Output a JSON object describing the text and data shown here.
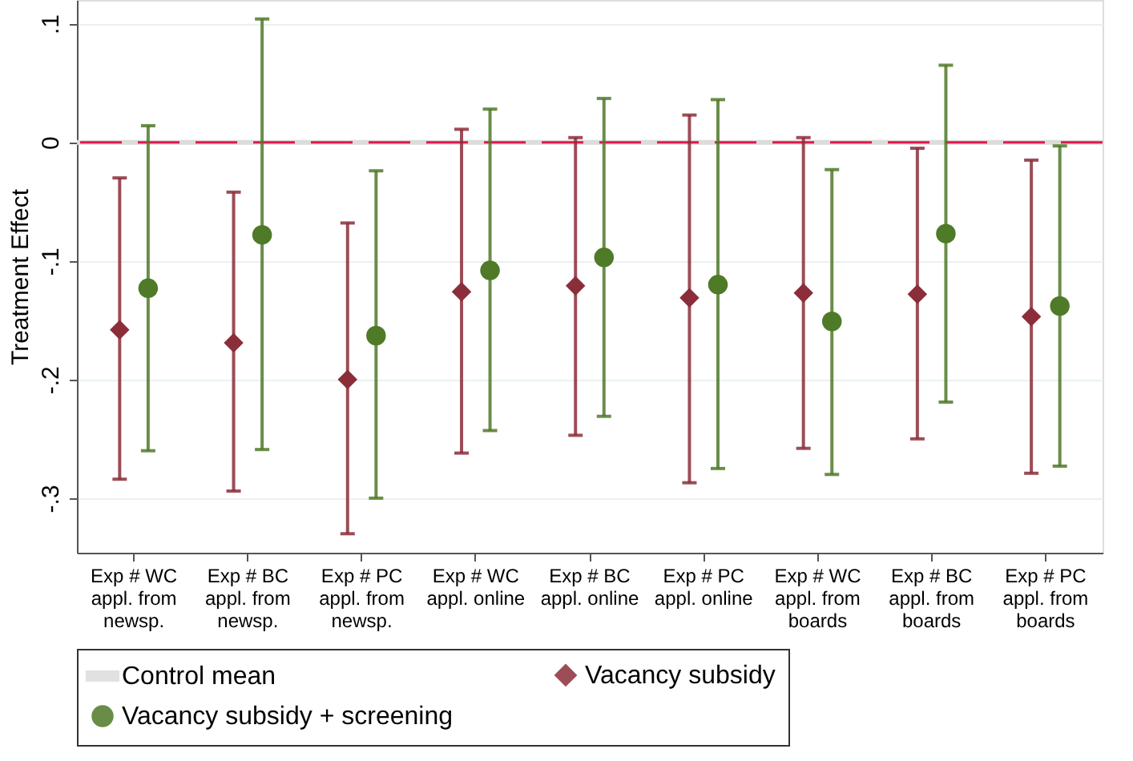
{
  "chart_data": {
    "type": "scatter",
    "ylabel": "Treatment Effect",
    "categories": [
      "Exp # WC appl. from newsp.",
      "Exp # BC appl. from newsp.",
      "Exp # PC appl. from newsp.",
      "Exp # WC appl. online",
      "Exp # BC appl. online",
      "Exp # PC appl. online",
      "Exp # WC appl. from boards",
      "Exp # BC appl. from boards",
      "Exp # PC appl. from boards"
    ],
    "series": [
      {
        "name": "Vacancy subsidy",
        "color": "#8b2e3a",
        "marker": "diamond",
        "values": [
          -0.158,
          -0.169,
          -0.2,
          -0.126,
          -0.121,
          -0.131,
          -0.127,
          -0.128,
          -0.147
        ],
        "errors": [
          [
            -0.284,
            -0.03
          ],
          [
            -0.294,
            -0.042
          ],
          [
            -0.33,
            -0.068
          ],
          [
            -0.262,
            0.011
          ],
          [
            -0.247,
            0.004
          ],
          [
            -0.287,
            0.023
          ],
          [
            -0.258,
            0.004
          ],
          [
            -0.25,
            -0.005
          ],
          [
            -0.279,
            -0.015
          ]
        ]
      },
      {
        "name": "Vacancy subsidy + screening",
        "color": "#4f7a28",
        "marker": "circle",
        "values": [
          -0.123,
          -0.078,
          -0.163,
          -0.108,
          -0.097,
          -0.12,
          -0.151,
          -0.077,
          -0.138
        ],
        "errors": [
          [
            -0.26,
            0.014
          ],
          [
            -0.259,
            0.104
          ],
          [
            -0.3,
            -0.024
          ],
          [
            -0.243,
            0.028
          ],
          [
            -0.231,
            0.037
          ],
          [
            -0.275,
            0.036
          ],
          [
            -0.28,
            -0.023
          ],
          [
            -0.219,
            0.065
          ],
          [
            -0.273,
            -0.003
          ]
        ]
      }
    ],
    "bands": [
      {
        "axis": "y",
        "from": -0.002,
        "to": 0.002,
        "label": "Control mean",
        "color": "#dcdcdc"
      }
    ],
    "ref_lines": [
      {
        "axis": "y",
        "value": 0,
        "color": "#e0194a",
        "line_style": "dashed"
      }
    ],
    "ylim": [
      -0.346,
      0.12
    ],
    "yticks": [
      {
        "value": 0.1,
        "label": ".1"
      },
      {
        "value": 0,
        "label": "0"
      },
      {
        "value": -0.1,
        "label": "-.1"
      },
      {
        "value": -0.2,
        "label": "-.2"
      },
      {
        "value": -0.3,
        "label": "-.3"
      }
    ],
    "grid": "y",
    "legend": "bottom"
  }
}
